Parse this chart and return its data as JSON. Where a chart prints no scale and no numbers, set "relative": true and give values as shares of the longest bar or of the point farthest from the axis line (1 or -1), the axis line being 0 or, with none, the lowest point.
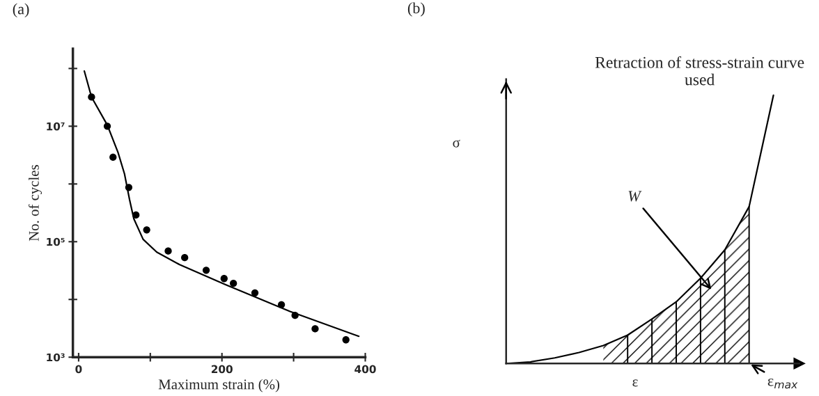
{
  "chart_data": [
    {
      "type": "scatter",
      "xlabel": "Maximum strain (%)",
      "ylabel": "No. of cycles",
      "annotations": [
        "(a)"
      ],
      "log": "y",
      "xlim": [
        -8,
        400
      ],
      "xticks": [
        0,
        {
          "value": 100,
          "label": null
        },
        200,
        {
          "value": 300,
          "label": null
        },
        400
      ],
      "ylim": [
        1000,
        220000000
      ],
      "yticks": [
        {
          "value": 1000,
          "label": "10³"
        },
        {
          "value": 10000,
          "label": null
        },
        {
          "value": 100000,
          "label": "10⁵"
        },
        {
          "value": 1000000,
          "label": null
        },
        {
          "value": 10000000,
          "label": "10⁷"
        },
        {
          "value": 100000000,
          "label": null
        }
      ],
      "grid": false,
      "legend": false,
      "series": [
        {
          "type": "scatter",
          "color": "#000000",
          "marker": "circle",
          "x": [
            18,
            40,
            48,
            70,
            80,
            95,
            125,
            148,
            178,
            203,
            216,
            246,
            283,
            302,
            330,
            373
          ],
          "values": [
            32000000,
            10000000,
            2900000,
            870000,
            290000,
            160000,
            69000,
            53000,
            32000,
            23000,
            19000,
            13000,
            8100,
            5300,
            3100,
            2000
          ]
        },
        {
          "type": "line",
          "color": "#000000",
          "marker": "none",
          "line_style": "solid",
          "x": [
            8,
            18,
            40,
            55,
            64,
            71,
            77,
            90,
            109,
            141,
            205,
            295,
            391
          ],
          "values": [
            90000000,
            32000000,
            10500000,
            3500000,
            1500000,
            540000,
            250000,
            110000,
            66000,
            40000,
            18000,
            6200,
            2300
          ]
        }
      ]
    },
    {
      "type": "line",
      "relative": true,
      "title": "Retraction of stress-strain curve used",
      "xlabel": "ε",
      "ylabel": "σ",
      "annotations": [
        "(b)",
        "W",
        "ε$_{max}$"
      ],
      "categories": [
        null,
        null,
        null,
        null,
        null,
        null,
        null,
        null,
        null,
        null,
        null,
        null
      ],
      "legend": false,
      "grid": false,
      "series": [
        {
          "color": "#000000",
          "marker": "none",
          "line_style": "solid",
          "values": [
            0,
            0.006,
            0.021,
            0.041,
            0.067,
            0.106,
            0.166,
            0.23,
            0.318,
            0.424,
            0.585,
            1.0
          ]
        }
      ]
    }
  ]
}
